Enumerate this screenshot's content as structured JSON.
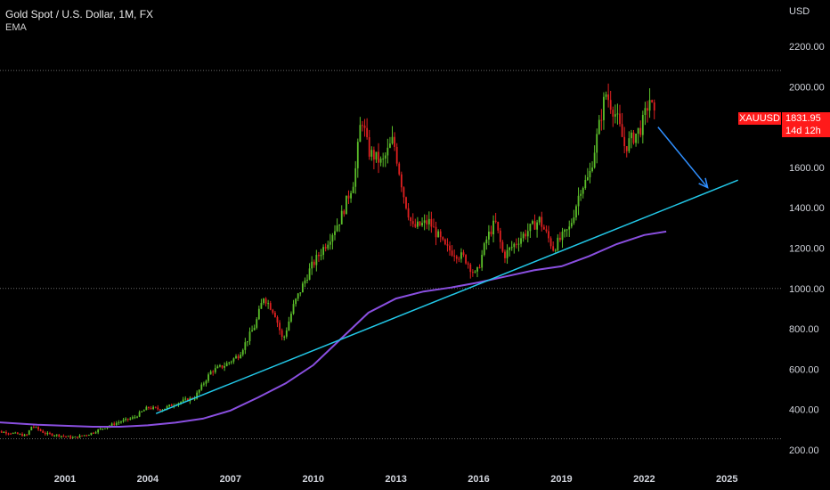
{
  "header": {
    "title": "Gold Spot / U.S. Dollar, 1M, FX",
    "indicator": "EMA"
  },
  "ticker": {
    "symbol": "XAUUSD",
    "price": "1831.95",
    "countdown": "14d 12h",
    "color": "#ff1a1a"
  },
  "colors": {
    "up": "#5cbf2a",
    "down": "#e02020",
    "ema": "#8a4fe0",
    "trendline": "#22c8e8",
    "arrow": "#2f8fff",
    "background": "#000000"
  },
  "chart_data": {
    "type": "candlestick",
    "currency_label": "USD",
    "ylim": [
      130,
      2320
    ],
    "y_ticks": [
      "200.00",
      "400.00",
      "600.00",
      "800.00",
      "1000.00",
      "1200.00",
      "1400.00",
      "1600.00",
      "1800.00",
      "2000.00",
      "2200.00"
    ],
    "x_ticks": [
      "2001",
      "2004",
      "2007",
      "2010",
      "2013",
      "2016",
      "2019",
      "2022",
      "2025"
    ],
    "xlim": [
      1998.2,
      2027.6
    ],
    "horizontal_lines": [
      2080,
      1000,
      255
    ],
    "price_path": [
      [
        1998.2,
        295
      ],
      [
        1999.0,
        285
      ],
      [
        1999.6,
        270
      ],
      [
        1999.8,
        320
      ],
      [
        2000.3,
        280
      ],
      [
        2000.9,
        270
      ],
      [
        2001.3,
        260
      ],
      [
        2001.9,
        280
      ],
      [
        2002.4,
        310
      ],
      [
        2003.0,
        340
      ],
      [
        2003.5,
        360
      ],
      [
        2004.0,
        410
      ],
      [
        2004.5,
        400
      ],
      [
        2005.0,
        430
      ],
      [
        2005.7,
        460
      ],
      [
        2006.3,
        590
      ],
      [
        2006.8,
        620
      ],
      [
        2007.3,
        670
      ],
      [
        2007.9,
        820
      ],
      [
        2008.2,
        960
      ],
      [
        2008.6,
        880
      ],
      [
        2008.9,
        740
      ],
      [
        2009.3,
        920
      ],
      [
        2009.9,
        1100
      ],
      [
        2010.5,
        1230
      ],
      [
        2011.0,
        1350
      ],
      [
        2011.5,
        1550
      ],
      [
        2011.75,
        1860
      ],
      [
        2012.0,
        1680
      ],
      [
        2012.5,
        1620
      ],
      [
        2012.9,
        1740
      ],
      [
        2013.3,
        1450
      ],
      [
        2013.6,
        1300
      ],
      [
        2014.2,
        1330
      ],
      [
        2014.8,
        1200
      ],
      [
        2015.5,
        1150
      ],
      [
        2015.9,
        1060
      ],
      [
        2016.3,
        1250
      ],
      [
        2016.6,
        1330
      ],
      [
        2016.9,
        1160
      ],
      [
        2017.5,
        1250
      ],
      [
        2018.2,
        1340
      ],
      [
        2018.7,
        1200
      ],
      [
        2019.3,
        1300
      ],
      [
        2019.7,
        1500
      ],
      [
        2020.0,
        1550
      ],
      [
        2020.6,
        1970
      ],
      [
        2021.0,
        1850
      ],
      [
        2021.3,
        1700
      ],
      [
        2021.9,
        1800
      ],
      [
        2022.2,
        1940
      ],
      [
        2022.4,
        1830
      ]
    ],
    "last_close": 1831.95,
    "series": [
      {
        "name": "EMA",
        "x": [
          1998.2,
          2000,
          2002,
          2003,
          2004,
          2005,
          2006,
          2007,
          2008,
          2009,
          2010,
          2011,
          2012,
          2013,
          2014,
          2015,
          2016,
          2017,
          2018,
          2019,
          2020,
          2021,
          2022,
          2022.8
        ],
        "y": [
          340,
          325,
          315,
          315,
          322,
          335,
          355,
          395,
          460,
          530,
          620,
          750,
          880,
          950,
          985,
          1005,
          1030,
          1060,
          1090,
          1110,
          1160,
          1220,
          1265,
          1282
        ]
      }
    ],
    "trendline": {
      "x": [
        2004.3,
        2025.4
      ],
      "y": [
        380,
        1537
      ]
    },
    "annotation_arrow": {
      "x": [
        2022.5,
        2024.3
      ],
      "y": [
        1800,
        1500
      ]
    }
  }
}
